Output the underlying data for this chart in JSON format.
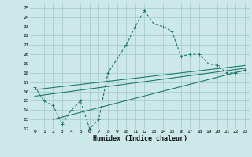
{
  "bg_color": "#cce8e8",
  "grid_color": "#aacccc",
  "line_color": "#1a7a6e",
  "xlabel": "Humidex (Indice chaleur)",
  "xlim": [
    -0.5,
    23.5
  ],
  "ylim": [
    12,
    25.5
  ],
  "xticks": [
    0,
    1,
    2,
    3,
    4,
    5,
    6,
    7,
    8,
    9,
    10,
    11,
    12,
    13,
    14,
    15,
    16,
    17,
    18,
    19,
    20,
    21,
    22,
    23
  ],
  "yticks": [
    12,
    13,
    14,
    15,
    16,
    17,
    18,
    19,
    20,
    21,
    22,
    23,
    24,
    25
  ],
  "main_x": [
    0,
    1,
    2,
    3,
    4,
    5,
    6,
    7,
    8,
    10,
    11,
    12,
    13,
    14,
    15,
    16,
    17,
    18,
    19,
    20,
    21,
    22,
    23
  ],
  "main_y": [
    16.5,
    15.0,
    14.5,
    12.5,
    14.0,
    15.0,
    12.0,
    13.0,
    18.0,
    21.0,
    23.0,
    24.7,
    23.3,
    23.0,
    22.5,
    19.8,
    20.0,
    20.0,
    19.0,
    18.8,
    18.0,
    18.0,
    18.3
  ],
  "trend1_x": [
    0,
    23
  ],
  "trend1_y": [
    15.5,
    18.5
  ],
  "trend2_x": [
    0,
    23
  ],
  "trend2_y": [
    16.2,
    18.8
  ],
  "trend3_x": [
    2,
    23
  ],
  "trend3_y": [
    13.0,
    18.3
  ]
}
